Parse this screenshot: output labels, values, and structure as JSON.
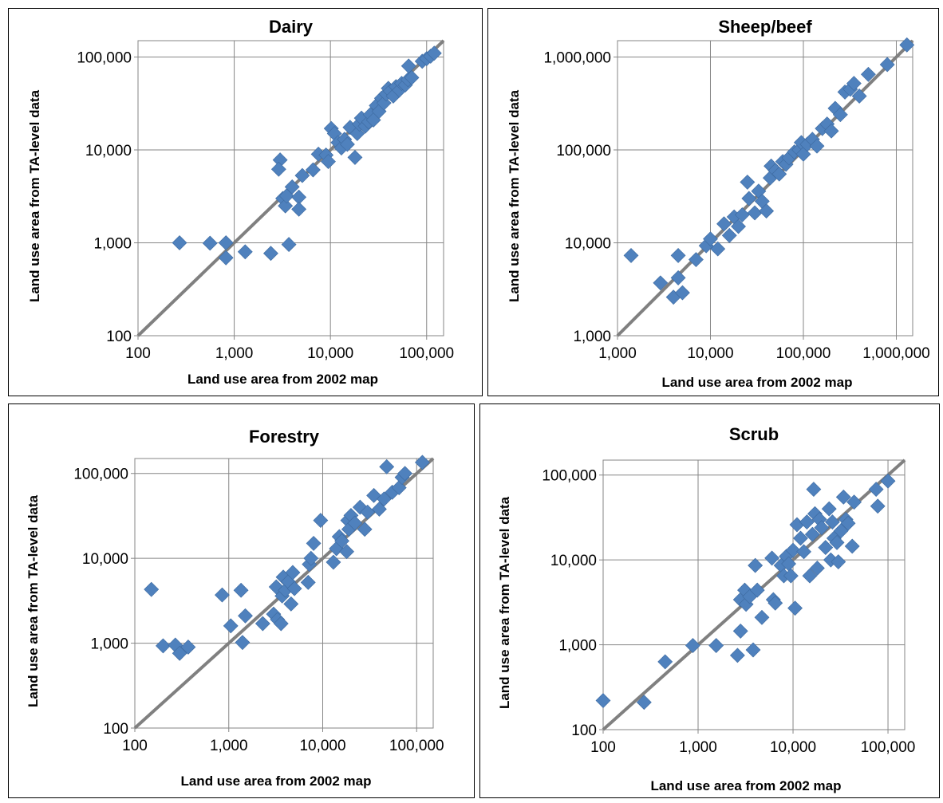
{
  "colors": {
    "marker": "#4f81bd",
    "reference_line": "#808080",
    "grid": "#868686"
  },
  "chart_data": [
    {
      "id": "dairy",
      "type": "scatter",
      "title": "Dairy",
      "xlabel": "Land use area from 2002 map",
      "ylabel": "Land use area from TA-level data",
      "x_scale": "log",
      "y_scale": "log",
      "xlim": [
        100,
        150000
      ],
      "ylim": [
        100,
        150000
      ],
      "xticks": [
        100,
        1000,
        10000,
        100000
      ],
      "yticks": [
        100,
        1000,
        10000,
        100000
      ],
      "xtick_labels": [
        "100",
        "1,000",
        "10,000",
        "100,000"
      ],
      "ytick_labels": [
        "100",
        "1,000",
        "10,000",
        "100,000"
      ],
      "grid": true,
      "reference_line": "y = x",
      "points": [
        [
          270,
          1000
        ],
        [
          560,
          990
        ],
        [
          820,
          1000
        ],
        [
          820,
          690
        ],
        [
          1300,
          800
        ],
        [
          2400,
          770
        ],
        [
          3700,
          960
        ],
        [
          3000,
          7800
        ],
        [
          2900,
          6200
        ],
        [
          3200,
          3000
        ],
        [
          3400,
          2500
        ],
        [
          3500,
          3200
        ],
        [
          4000,
          4000
        ],
        [
          4700,
          3100
        ],
        [
          4700,
          2300
        ],
        [
          5100,
          5300
        ],
        [
          6600,
          6100
        ],
        [
          7500,
          9000
        ],
        [
          9000,
          8800
        ],
        [
          9500,
          7500
        ],
        [
          10200,
          17000
        ],
        [
          11000,
          15000
        ],
        [
          12000,
          12000
        ],
        [
          13000,
          10500
        ],
        [
          14000,
          13000
        ],
        [
          15000,
          11500
        ],
        [
          16000,
          17500
        ],
        [
          18000,
          8300
        ],
        [
          19000,
          15000
        ],
        [
          20000,
          19000
        ],
        [
          21000,
          22000
        ],
        [
          23000,
          18000
        ],
        [
          25000,
          20000
        ],
        [
          26000,
          24000
        ],
        [
          28000,
          21000
        ],
        [
          30000,
          30000
        ],
        [
          32000,
          26000
        ],
        [
          34000,
          36000
        ],
        [
          36000,
          32000
        ],
        [
          38000,
          40000
        ],
        [
          40000,
          46000
        ],
        [
          42000,
          43000
        ],
        [
          45000,
          38000
        ],
        [
          48000,
          48000
        ],
        [
          52000,
          44000
        ],
        [
          55000,
          52000
        ],
        [
          60000,
          50000
        ],
        [
          64000,
          57000
        ],
        [
          65000,
          80000
        ],
        [
          70000,
          60000
        ],
        [
          90000,
          90000
        ],
        [
          100000,
          96000
        ],
        [
          110000,
          102000
        ],
        [
          120000,
          110000
        ]
      ]
    },
    {
      "id": "sheep_beef",
      "type": "scatter",
      "title": "Sheep/beef",
      "xlabel": "Land use area from 2002 map",
      "ylabel": "Land use area from TA-level data",
      "x_scale": "log",
      "y_scale": "log",
      "xlim": [
        1000,
        1500000
      ],
      "ylim": [
        1000,
        1500000
      ],
      "xticks": [
        1000,
        10000,
        100000,
        1000000
      ],
      "yticks": [
        1000,
        10000,
        100000,
        1000000
      ],
      "xtick_labels": [
        "1,000",
        "10,000",
        "100,000",
        "1,000,000"
      ],
      "ytick_labels": [
        "1,000",
        "10,000",
        "100,000",
        "1,000,000"
      ],
      "grid": true,
      "reference_line": "y = x",
      "points": [
        [
          1400,
          7300
        ],
        [
          2900,
          3700
        ],
        [
          4000,
          2600
        ],
        [
          4500,
          7300
        ],
        [
          4500,
          4200
        ],
        [
          5000,
          2900
        ],
        [
          7000,
          6600
        ],
        [
          9000,
          9300
        ],
        [
          10000,
          11000
        ],
        [
          12000,
          8600
        ],
        [
          14000,
          16000
        ],
        [
          16000,
          12000
        ],
        [
          18000,
          19000
        ],
        [
          20000,
          15000
        ],
        [
          22000,
          20000
        ],
        [
          25000,
          45000
        ],
        [
          26000,
          30000
        ],
        [
          30000,
          21000
        ],
        [
          33000,
          36000
        ],
        [
          36000,
          28000
        ],
        [
          40000,
          22000
        ],
        [
          44000,
          50000
        ],
        [
          45000,
          67000
        ],
        [
          50000,
          60000
        ],
        [
          55000,
          55000
        ],
        [
          60000,
          75000
        ],
        [
          65000,
          70000
        ],
        [
          70000,
          82000
        ],
        [
          80000,
          95000
        ],
        [
          90000,
          100000
        ],
        [
          95000,
          120000
        ],
        [
          100000,
          90000
        ],
        [
          110000,
          115000
        ],
        [
          125000,
          130000
        ],
        [
          140000,
          110000
        ],
        [
          160000,
          170000
        ],
        [
          180000,
          190000
        ],
        [
          200000,
          160000
        ],
        [
          220000,
          280000
        ],
        [
          250000,
          240000
        ],
        [
          280000,
          420000
        ],
        [
          320000,
          450000
        ],
        [
          350000,
          520000
        ],
        [
          400000,
          380000
        ],
        [
          500000,
          650000
        ],
        [
          800000,
          830000
        ],
        [
          1300000,
          1350000
        ]
      ]
    },
    {
      "id": "forestry",
      "type": "scatter",
      "title": "Forestry",
      "xlabel": "Land use area from 2002 map",
      "ylabel": "Land use area from TA-level data",
      "x_scale": "log",
      "y_scale": "log",
      "xlim": [
        100,
        150000
      ],
      "ylim": [
        100,
        150000
      ],
      "xticks": [
        100,
        1000,
        10000,
        100000
      ],
      "yticks": [
        100,
        1000,
        10000,
        100000
      ],
      "xtick_labels": [
        "100",
        "1,000",
        "10,000",
        "100,000"
      ],
      "ytick_labels": [
        "100",
        "1,000",
        "10,000",
        "100,000"
      ],
      "grid": true,
      "reference_line": "y = x",
      "points": [
        [
          150,
          4300
        ],
        [
          200,
          930
        ],
        [
          270,
          950
        ],
        [
          300,
          760
        ],
        [
          370,
          900
        ],
        [
          850,
          3700
        ],
        [
          1050,
          1600
        ],
        [
          1350,
          4200
        ],
        [
          1400,
          1020
        ],
        [
          1500,
          2100
        ],
        [
          2300,
          1700
        ],
        [
          3000,
          2200
        ],
        [
          3200,
          4600
        ],
        [
          3300,
          1900
        ],
        [
          3600,
          1700
        ],
        [
          3700,
          3600
        ],
        [
          3800,
          6000
        ],
        [
          4000,
          4200
        ],
        [
          4300,
          5300
        ],
        [
          4600,
          2900
        ],
        [
          4800,
          6800
        ],
        [
          5000,
          4400
        ],
        [
          7000,
          5200
        ],
        [
          7200,
          8500
        ],
        [
          7500,
          10000
        ],
        [
          8000,
          15000
        ],
        [
          9500,
          28000
        ],
        [
          13000,
          9000
        ],
        [
          14000,
          13000
        ],
        [
          15000,
          18000
        ],
        [
          16000,
          16000
        ],
        [
          18000,
          12000
        ],
        [
          18500,
          28000
        ],
        [
          19000,
          22000
        ],
        [
          20000,
          32000
        ],
        [
          22000,
          26000
        ],
        [
          25000,
          40000
        ],
        [
          28000,
          22000
        ],
        [
          30000,
          35000
        ],
        [
          35000,
          55000
        ],
        [
          40000,
          38000
        ],
        [
          45000,
          50000
        ],
        [
          48000,
          120000
        ],
        [
          55000,
          60000
        ],
        [
          65000,
          68000
        ],
        [
          70000,
          90000
        ],
        [
          75000,
          100000
        ],
        [
          115000,
          135000
        ]
      ]
    },
    {
      "id": "scrub",
      "type": "scatter",
      "title": "Scrub",
      "xlabel": "Land use area from 2002 map",
      "ylabel": "Land use area from TA-level data",
      "x_scale": "log",
      "y_scale": "log",
      "xlim": [
        100,
        150000
      ],
      "ylim": [
        100,
        150000
      ],
      "xticks": [
        100,
        1000,
        10000,
        100000
      ],
      "yticks": [
        100,
        1000,
        10000,
        100000
      ],
      "xtick_labels": [
        "100",
        "1,000",
        "10,000",
        "100,000"
      ],
      "ytick_labels": [
        "100",
        "1,000",
        "10,000",
        "100,000"
      ],
      "grid": true,
      "reference_line": "y = x",
      "points": [
        [
          100,
          220
        ],
        [
          270,
          210
        ],
        [
          450,
          630
        ],
        [
          880,
          980
        ],
        [
          1550,
          980
        ],
        [
          2600,
          750
        ],
        [
          2800,
          1450
        ],
        [
          2800,
          3400
        ],
        [
          3100,
          4400
        ],
        [
          3200,
          3000
        ],
        [
          3500,
          3700
        ],
        [
          3800,
          870
        ],
        [
          4000,
          8600
        ],
        [
          4200,
          4400
        ],
        [
          4700,
          2100
        ],
        [
          6000,
          10500
        ],
        [
          6200,
          3400
        ],
        [
          6500,
          3100
        ],
        [
          7500,
          8600
        ],
        [
          8000,
          6500
        ],
        [
          8500,
          11000
        ],
        [
          9000,
          9000
        ],
        [
          9500,
          6500
        ],
        [
          10000,
          13000
        ],
        [
          10500,
          2700
        ],
        [
          11000,
          26000
        ],
        [
          12000,
          18000
        ],
        [
          13000,
          12500
        ],
        [
          14000,
          28000
        ],
        [
          15000,
          6500
        ],
        [
          16000,
          20000
        ],
        [
          16500,
          68000
        ],
        [
          17000,
          35000
        ],
        [
          18000,
          8000
        ],
        [
          19000,
          30000
        ],
        [
          20000,
          24000
        ],
        [
          22000,
          14000
        ],
        [
          24000,
          40000
        ],
        [
          25000,
          10000
        ],
        [
          26000,
          28000
        ],
        [
          27000,
          18000
        ],
        [
          29000,
          16000
        ],
        [
          30000,
          9500
        ],
        [
          32000,
          22000
        ],
        [
          34000,
          55000
        ],
        [
          36000,
          30000
        ],
        [
          38000,
          27000
        ],
        [
          42000,
          14500
        ],
        [
          44000,
          48000
        ],
        [
          75000,
          68000
        ],
        [
          78000,
          43000
        ],
        [
          100000,
          85000
        ]
      ]
    }
  ]
}
